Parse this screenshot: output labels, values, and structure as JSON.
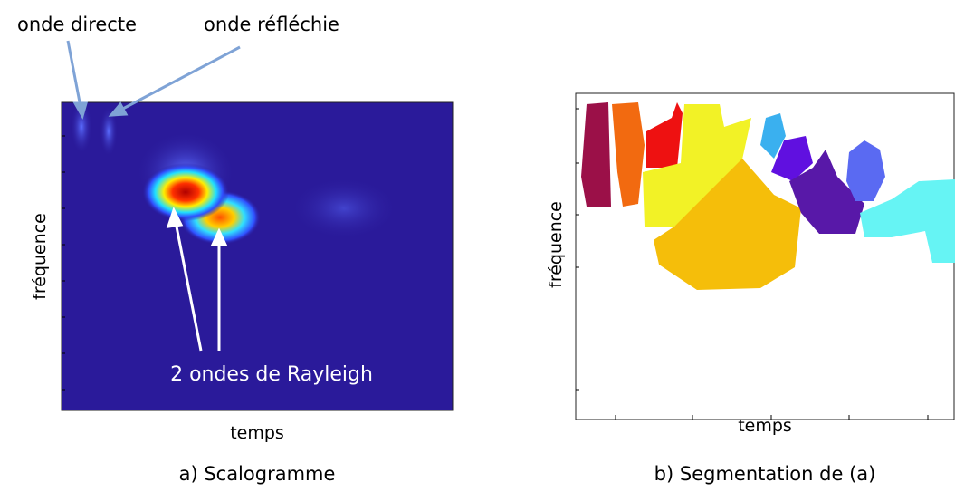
{
  "annotations": {
    "direct": "onde directe",
    "reflected": "onde réfléchie",
    "rayleigh": "2 ondes de Rayleigh"
  },
  "left_panel": {
    "ylabel": "fréquence",
    "xlabel": "temps",
    "caption": "a) Scalogramme"
  },
  "right_panel": {
    "ylabel": "fréquence",
    "xlabel": "temps",
    "caption": "b) Segmentation de (a)"
  }
}
